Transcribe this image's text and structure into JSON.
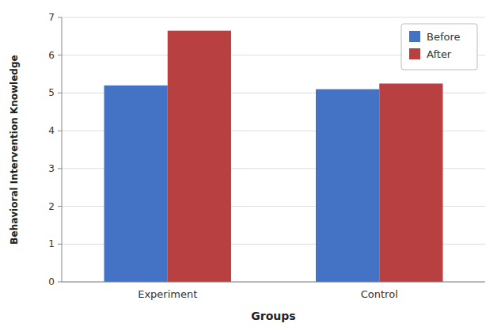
{
  "chart_data": {
    "type": "bar",
    "xlabel": "Groups",
    "ylabel": "Behavioral Intervention Knowledge",
    "categories": [
      "Experiment",
      "Control"
    ],
    "series": [
      {
        "name": "Before",
        "color": "#4472C4",
        "values": [
          5.2,
          5.1
        ]
      },
      {
        "name": "After",
        "color": "#B94040",
        "values": [
          6.65,
          5.25
        ]
      }
    ],
    "ylim": [
      0,
      7
    ],
    "yticks": [
      0,
      1,
      2,
      3,
      4,
      5,
      6,
      7
    ],
    "grid": true,
    "legend": "upper right"
  }
}
